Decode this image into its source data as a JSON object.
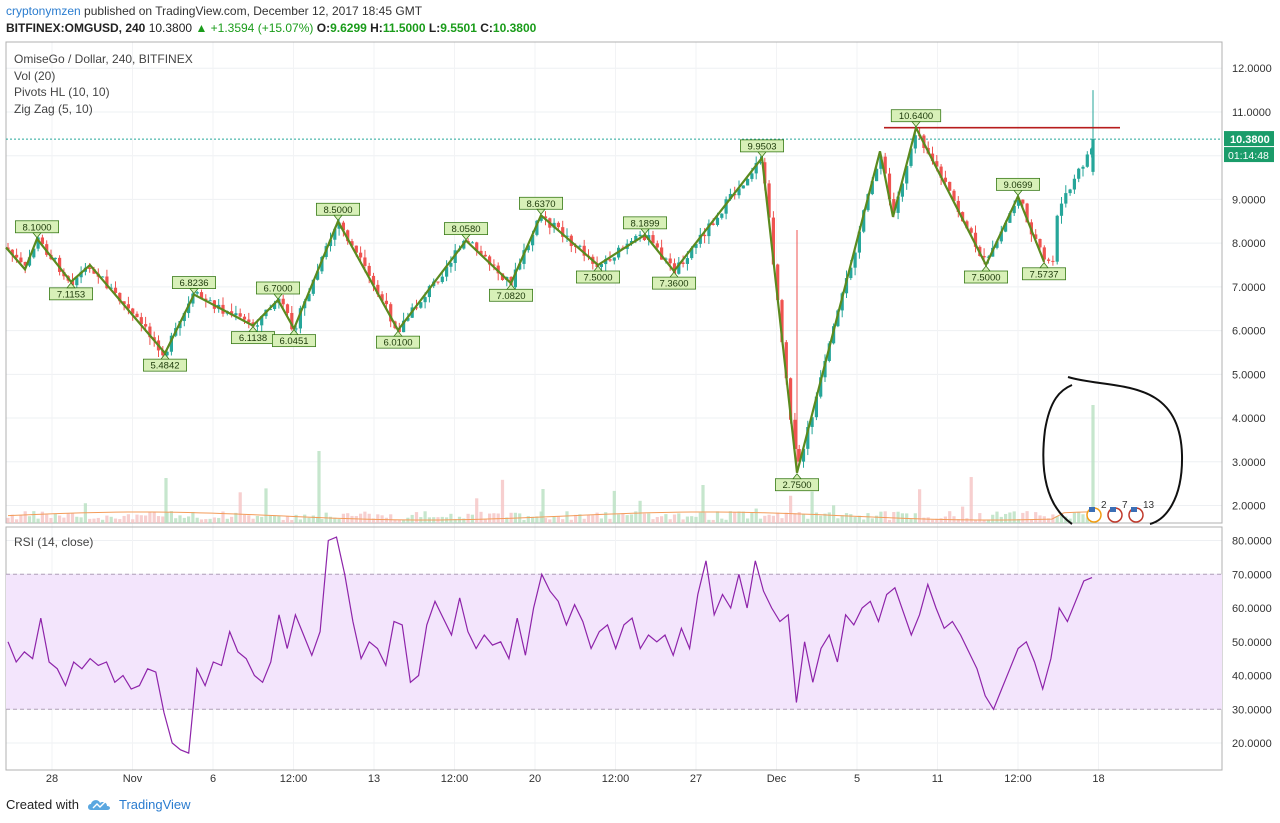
{
  "header": {
    "author": "cryptonymzen",
    "published": "published on TradingView.com, December 12, 2017 18:45 GMT",
    "symbol": "BITFINEX:OMGUSD, 240",
    "last": "10.3800",
    "change": "▲ +1.3594 (+15.07%)",
    "open_label": "O:",
    "open": "9.6299",
    "high_label": "H:",
    "high": "11.5000",
    "low_label": "L:",
    "low": "9.5501",
    "close_label": "C:",
    "close": "10.3800"
  },
  "legend": {
    "title": "OmiseGo / Dollar, 240, BITFINEX",
    "vol": "Vol (20)",
    "pivots": "Pivots HL (10, 10)",
    "zigzag": "Zig Zag (5, 10)"
  },
  "rsi_legend": "RSI (14, close)",
  "price_badge": {
    "value": "10.3800",
    "countdown": "01:14:48"
  },
  "event_markers": [
    "2",
    "7",
    "13"
  ],
  "footer": {
    "created_with": "Created with",
    "brand": "TradingView"
  },
  "colors": {
    "up": "#26a69a",
    "down": "#ef5350",
    "zigzag": "#5b8a1e",
    "label_bg": "#d8f0b8",
    "label_border": "#3a7a1a",
    "rsi": "#8e24aa",
    "rsi_band": "#f3e5fc",
    "resistance": "#b71c1c",
    "price_line": "#26a69a",
    "badge": "#1a9c6a"
  },
  "chart_data": [
    {
      "type": "candlestick",
      "title": "OmiseGo / Dollar, 240, BITFINEX",
      "ylim": [
        1.6,
        12.6
      ],
      "y_ticks": [
        "12.0000",
        "11.0000",
        "10.0000",
        "9.0000",
        "8.0000",
        "7.0000",
        "6.0000",
        "5.0000",
        "4.0000",
        "3.0000",
        "2.0000"
      ],
      "x_ticks": [
        "28",
        "Nov",
        "6",
        "12:00",
        "13",
        "12:00",
        "20",
        "12:00",
        "27",
        "Dec",
        "5",
        "11",
        "12:00",
        "18"
      ],
      "zigzag_pivots": [
        {
          "label": "8.1000",
          "y": 8.1,
          "side": "top"
        },
        {
          "label": "7.1153",
          "y": 7.1153,
          "side": "bottom"
        },
        {
          "label": "5.4842",
          "y": 5.4842,
          "side": "bottom"
        },
        {
          "label": "6.8236",
          "y": 6.8236,
          "side": "top"
        },
        {
          "label": "6.1138",
          "y": 6.1138,
          "side": "bottom"
        },
        {
          "label": "6.7000",
          "y": 6.7,
          "side": "top"
        },
        {
          "label": "6.0451",
          "y": 6.0451,
          "side": "bottom"
        },
        {
          "label": "8.5000",
          "y": 8.5,
          "side": "top"
        },
        {
          "label": "6.0100",
          "y": 6.01,
          "side": "bottom"
        },
        {
          "label": "8.0580",
          "y": 8.058,
          "side": "top"
        },
        {
          "label": "7.0820",
          "y": 7.082,
          "side": "bottom"
        },
        {
          "label": "8.6370",
          "y": 8.637,
          "side": "top"
        },
        {
          "label": "7.5000",
          "y": 7.5,
          "side": "bottom"
        },
        {
          "label": "8.1899",
          "y": 8.1899,
          "side": "top"
        },
        {
          "label": "7.3600",
          "y": 7.36,
          "side": "bottom"
        },
        {
          "label": "9.9503",
          "y": 9.9503,
          "side": "top"
        },
        {
          "label": "2.7500",
          "y": 2.75,
          "side": "bottom"
        },
        {
          "label": "10.6400",
          "y": 10.64,
          "side": "top"
        },
        {
          "label": "7.5000",
          "y": 7.5,
          "side": "bottom"
        },
        {
          "label": "9.0699",
          "y": 9.0699,
          "side": "top"
        },
        {
          "label": "7.5737",
          "y": 7.5737,
          "side": "bottom"
        }
      ],
      "resistance_level": 10.64,
      "last_price": 10.38,
      "last_high": 11.5
    },
    {
      "type": "line",
      "title": "RSI (14, close)",
      "ylim": [
        12,
        84
      ],
      "y_ticks": [
        "80.0000",
        "70.0000",
        "60.0000",
        "50.0000",
        "40.0000",
        "30.0000",
        "20.0000"
      ],
      "band": [
        30,
        70
      ],
      "series": [
        {
          "values": [
            50,
            44,
            47,
            45,
            57,
            44,
            42,
            37,
            44,
            42,
            45,
            43,
            44,
            38,
            40,
            36,
            37,
            42,
            41,
            29,
            20,
            18,
            17,
            42,
            37,
            44,
            43,
            53,
            47,
            45,
            40,
            38,
            44,
            58,
            48,
            58,
            52,
            46,
            53,
            80,
            81,
            70,
            56,
            45,
            50,
            48,
            43,
            56,
            55,
            38,
            40,
            55,
            62,
            57,
            52,
            63,
            53,
            48,
            52,
            49,
            50,
            45,
            57,
            46,
            60,
            70,
            65,
            62,
            55,
            61,
            56,
            48,
            53,
            55,
            48,
            55,
            57,
            48,
            52,
            50,
            52,
            46,
            54,
            48,
            64,
            74,
            58,
            64,
            60,
            70,
            60,
            74,
            65,
            60,
            56,
            58,
            32,
            50,
            38,
            48,
            52,
            44,
            58,
            55,
            60,
            62,
            56,
            64,
            66,
            59,
            52,
            58,
            67,
            60,
            54,
            56,
            52,
            47,
            42,
            34,
            30,
            36,
            42,
            48,
            50,
            44,
            36,
            45,
            60,
            56,
            62,
            68,
            69
          ]
        }
      ]
    }
  ]
}
